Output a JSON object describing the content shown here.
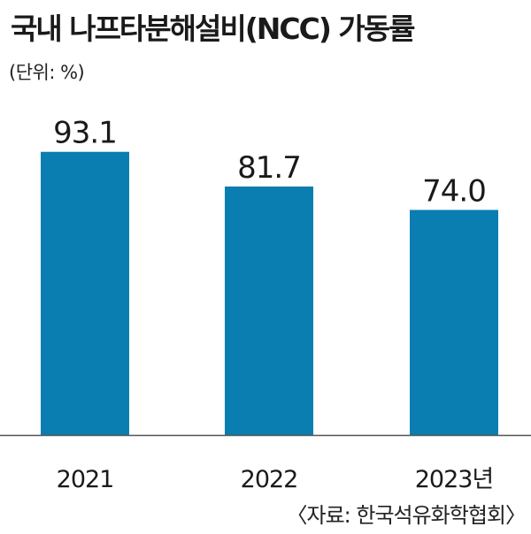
{
  "title": "국내 나프타분해설비(NCC) 가동률",
  "unit": "(단위: %)",
  "source": "〈자료: 한국석유화학협회〉",
  "colors": {
    "bar": "#0a7eb0",
    "axis": "#555555",
    "text": "#1a1a1a"
  },
  "chart_data": {
    "type": "bar",
    "title": "국내 나프타분해설비(NCC) 가동률",
    "xlabel": "",
    "ylabel": "",
    "categories": [
      "2021",
      "2022",
      "2023년"
    ],
    "values": [
      93.1,
      81.7,
      74.0
    ],
    "value_labels": [
      "93.1",
      "81.7",
      "74.0"
    ],
    "ylim": [
      0,
      100
    ],
    "grid": false,
    "legend": "none"
  }
}
